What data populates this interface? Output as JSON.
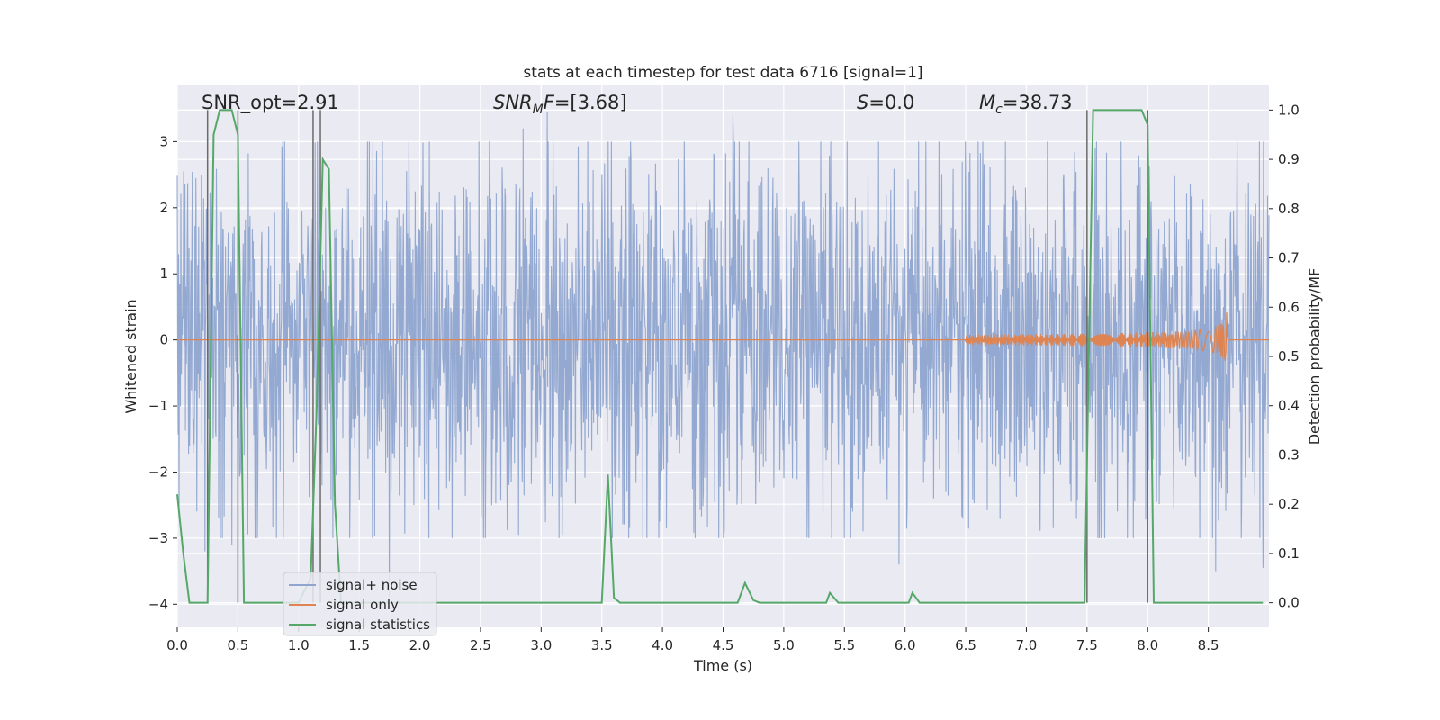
{
  "chart_data": {
    "type": "line",
    "title": "stats at each timestep for test data 6716 [signal=1]",
    "xlabel": "Time (s)",
    "ylabel_left": "Whitened strain",
    "ylabel_right": "Detection probability/MF",
    "xlim": [
      0.0,
      9.0
    ],
    "ylim_left": [
      -4.35,
      3.85
    ],
    "ylim_right": [
      -0.05,
      1.05
    ],
    "x_ticks": [
      "0.0",
      "0.5",
      "1.0",
      "1.5",
      "2.0",
      "2.5",
      "3.0",
      "3.5",
      "4.0",
      "4.5",
      "5.0",
      "5.5",
      "6.0",
      "6.5",
      "7.0",
      "7.5",
      "8.0",
      "8.5"
    ],
    "x_tick_values": [
      0.0,
      0.5,
      1.0,
      1.5,
      2.0,
      2.5,
      3.0,
      3.5,
      4.0,
      4.5,
      5.0,
      5.5,
      6.0,
      6.5,
      7.0,
      7.5,
      8.0,
      8.5
    ],
    "y_left_ticks": [
      "−4",
      "−3",
      "−2",
      "−1",
      "0",
      "1",
      "2",
      "3"
    ],
    "y_left_tick_values": [
      -4,
      -3,
      -2,
      -1,
      0,
      1,
      2,
      3
    ],
    "y_right_ticks": [
      "0.0",
      "0.1",
      "0.2",
      "0.3",
      "0.4",
      "0.5",
      "0.6",
      "0.7",
      "0.8",
      "0.9",
      "1.0"
    ],
    "y_right_tick_values": [
      0.0,
      0.1,
      0.2,
      0.3,
      0.4,
      0.5,
      0.6,
      0.7,
      0.8,
      0.9,
      1.0
    ],
    "grid": true,
    "legend_position": "bottom-left",
    "annotations": {
      "snr_opt": "SNR_opt=2.91",
      "snr_mf_base": "SNR",
      "snr_mf_sub": "M",
      "snr_mf_rest": "F=[3.68]",
      "s_italic": "S",
      "s_rest": "=0.0",
      "mc_italic": "M",
      "mc_sub": "c",
      "mc_rest": "=38.73"
    },
    "series": [
      {
        "name": "signal+ noise",
        "axis": "left",
        "color": "#8fa5cf",
        "kind": "noise",
        "envelope_typical": 1.6,
        "peak_values": [
          {
            "x": 3.05,
            "y": 3.45
          },
          {
            "x": 2.85,
            "y": 3.2
          },
          {
            "x": 4.58,
            "y": 3.4
          },
          {
            "x": 1.75,
            "y": -3.9
          },
          {
            "x": 8.56,
            "y": -3.5
          },
          {
            "x": 8.95,
            "y": -3.45
          },
          {
            "x": 5.95,
            "y": -3.4
          },
          {
            "x": 0.23,
            "y": -3.2
          },
          {
            "x": 0.45,
            "y": -3.1
          }
        ]
      },
      {
        "name": "signal only",
        "axis": "left",
        "color": "#dd8452",
        "kind": "chirp",
        "chirp_start": 6.5,
        "chirp_end": 8.66,
        "peak_amplitude": 0.65
      },
      {
        "name": "signal statistics",
        "axis": "right",
        "color": "#55a868",
        "x": [
          0.0,
          0.05,
          0.1,
          0.15,
          0.2,
          0.25,
          0.3,
          0.35,
          0.4,
          0.45,
          0.5,
          0.55,
          0.6,
          0.65,
          0.7,
          1.0,
          1.1,
          1.15,
          1.2,
          1.25,
          1.3,
          1.35,
          1.4,
          3.45,
          3.5,
          3.55,
          3.6,
          3.65,
          3.7,
          4.55,
          4.62,
          4.68,
          4.75,
          4.8,
          5.3,
          5.35,
          5.38,
          5.45,
          5.5,
          5.98,
          6.03,
          6.06,
          6.12,
          6.15,
          7.45,
          7.48,
          7.55,
          7.6,
          7.7,
          7.8,
          7.95,
          8.0,
          8.05,
          8.1,
          8.95
        ],
        "y": [
          0.22,
          0.1,
          0.0,
          0.0,
          0.0,
          0.0,
          0.95,
          1.0,
          1.0,
          1.0,
          0.95,
          0.0,
          0.0,
          0.0,
          0.0,
          0.0,
          0.05,
          0.4,
          0.9,
          0.88,
          0.2,
          0.0,
          0.0,
          0.0,
          0.0,
          0.26,
          0.01,
          0.0,
          0.0,
          0.0,
          0.0,
          0.04,
          0.005,
          0.0,
          0.0,
          0.0,
          0.02,
          0.0,
          0.0,
          0.0,
          0.0,
          0.02,
          0.0,
          0.0,
          0.0,
          0.0,
          1.0,
          1.0,
          1.0,
          1.0,
          1.0,
          0.97,
          0.0,
          0.0,
          0.0
        ]
      }
    ],
    "vertical_markers": [
      0.25,
      0.5,
      1.12,
      1.18,
      7.5,
      8.0
    ]
  },
  "colors": {
    "plot_background": "#eaeaf2",
    "grid": "#ffffff",
    "marker_line": "#6b6b6b"
  }
}
